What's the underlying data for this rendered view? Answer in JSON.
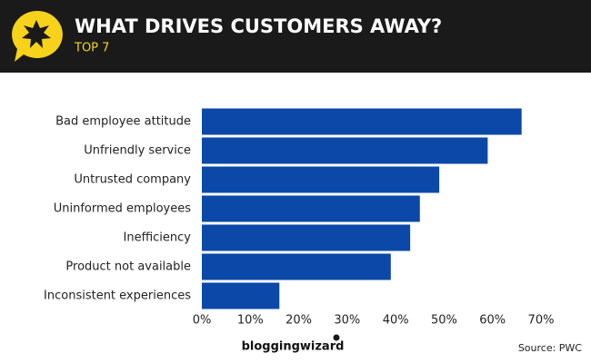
{
  "chart_data": {
    "type": "hbar",
    "title": "WHAT DRIVES CUSTOMERS AWAY?",
    "subtitle": "TOP 7",
    "categories": [
      "Bad employee attitude",
      "Unfriendly service",
      "Untrusted company",
      "Uninformed employees",
      "Inefficiency",
      "Product not available",
      "Inconsistent experiences"
    ],
    "values": [
      66,
      59,
      49,
      45,
      43,
      39,
      16
    ],
    "color": "#0b48a8",
    "xlim": [
      0,
      70
    ],
    "xticks": [
      {
        "value": 0,
        "label": "0%"
      },
      {
        "value": 10,
        "label": "10%"
      },
      {
        "value": 20,
        "label": "20%"
      },
      {
        "value": 30,
        "label": "30%"
      },
      {
        "value": 40,
        "label": "40%"
      },
      {
        "value": 50,
        "label": "50%"
      },
      {
        "value": 60,
        "label": "60%"
      },
      {
        "value": 70,
        "label": "70%"
      }
    ],
    "grid": false
  },
  "footer": {
    "brand": "bloggingwizard",
    "source": "Source: PWC"
  }
}
